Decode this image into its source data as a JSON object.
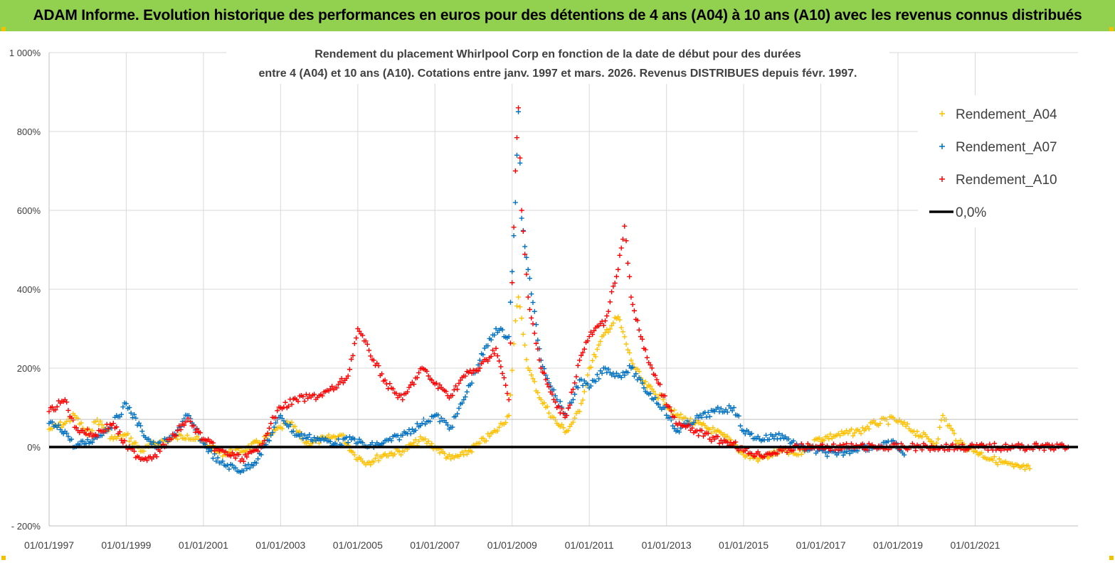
{
  "header": {
    "title": "ADAM Informe. Evolution historique des performances en euros pour des détentions de 4 ans (A04) à 10 ans (A10) avec les revenus connus distribués"
  },
  "chart_data": {
    "type": "scatter",
    "title_line1": "Rendement du placement Whirlpool Corp en fonction de la date de début pour des durées",
    "title_line2": "entre 4 (A04) et 10 ans (A10).  Cotations entre janv. 1997 et mars. 2026. Revenus DISTRIBUES depuis févr. 1997.",
    "xlim": [
      "1997-01-01",
      "2023-09-01"
    ],
    "ylim": [
      -200,
      1000
    ],
    "x_ticks": [
      "01/01/1997",
      "01/01/1999",
      "01/01/2001",
      "01/01/2003",
      "01/01/2005",
      "01/01/2007",
      "01/01/2009",
      "01/01/2011",
      "01/01/2013",
      "01/01/2015",
      "01/01/2017",
      "01/01/2019",
      "01/01/2021"
    ],
    "y_ticks": [
      "- 200%",
      "0%",
      "200%",
      "400%",
      "600%",
      "800%",
      "1 000%"
    ],
    "grid": true,
    "legend_position": "top-right",
    "series": [
      {
        "name": "Rendement_A04",
        "color": "#ffc000",
        "marker": "+",
        "points": [
          [
            "1997-01-01",
            45
          ],
          [
            "1997-06-01",
            60
          ],
          [
            "1997-09-01",
            80
          ],
          [
            "1998-01-01",
            30
          ],
          [
            "1998-04-01",
            70
          ],
          [
            "1998-09-01",
            20
          ],
          [
            "1999-01-01",
            30
          ],
          [
            "1999-06-01",
            -10
          ],
          [
            "1999-10-01",
            10
          ],
          [
            "2000-03-01",
            20
          ],
          [
            "2000-08-01",
            30
          ],
          [
            "2001-01-01",
            10
          ],
          [
            "2001-06-01",
            -15
          ],
          [
            "2002-01-01",
            -10
          ],
          [
            "2002-06-01",
            10
          ],
          [
            "2002-10-01",
            30
          ],
          [
            "2003-01-01",
            50
          ],
          [
            "2003-04-01",
            60
          ],
          [
            "2003-09-01",
            10
          ],
          [
            "2004-03-01",
            20
          ],
          [
            "2004-08-01",
            30
          ],
          [
            "2004-12-01",
            -20
          ],
          [
            "2005-04-01",
            -40
          ],
          [
            "2005-09-01",
            -20
          ],
          [
            "2006-03-01",
            -10
          ],
          [
            "2006-09-01",
            20
          ],
          [
            "2007-01-01",
            0
          ],
          [
            "2007-06-01",
            -30
          ],
          [
            "2007-10-01",
            -20
          ],
          [
            "2008-03-01",
            10
          ],
          [
            "2008-08-01",
            40
          ],
          [
            "2008-12-01",
            80
          ],
          [
            "2009-02-01",
            320
          ],
          [
            "2009-03-01",
            380
          ],
          [
            "2009-06-01",
            200
          ],
          [
            "2009-10-01",
            120
          ],
          [
            "2010-03-01",
            60
          ],
          [
            "2010-06-01",
            40
          ],
          [
            "2010-10-01",
            90
          ],
          [
            "2011-01-01",
            200
          ],
          [
            "2011-06-01",
            290
          ],
          [
            "2011-10-01",
            330
          ],
          [
            "2012-02-01",
            220
          ],
          [
            "2012-06-01",
            160
          ],
          [
            "2012-12-01",
            120
          ],
          [
            "2013-04-01",
            80
          ],
          [
            "2013-10-01",
            60
          ],
          [
            "2014-04-01",
            40
          ],
          [
            "2014-10-01",
            10
          ],
          [
            "2015-01-01",
            -20
          ],
          [
            "2015-06-01",
            -30
          ],
          [
            "2016-01-01",
            -10
          ],
          [
            "2016-06-01",
            -20
          ],
          [
            "2016-12-01",
            20
          ],
          [
            "2017-06-01",
            30
          ],
          [
            "2018-01-01",
            40
          ],
          [
            "2018-06-01",
            60
          ],
          [
            "2018-12-01",
            70
          ],
          [
            "2019-06-01",
            40
          ],
          [
            "2020-01-01",
            10
          ],
          [
            "2020-03-01",
            80
          ],
          [
            "2020-08-01",
            10
          ],
          [
            "2021-01-01",
            -10
          ],
          [
            "2021-06-01",
            -30
          ],
          [
            "2022-01-01",
            -50
          ],
          [
            "2022-06-01",
            -55
          ]
        ]
      },
      {
        "name": "Rendement_A07",
        "color": "#0070c0",
        "marker": "+",
        "points": [
          [
            "1997-01-01",
            60
          ],
          [
            "1997-06-01",
            40
          ],
          [
            "1997-09-01",
            0
          ],
          [
            "1998-03-01",
            20
          ],
          [
            "1998-09-01",
            60
          ],
          [
            "1999-01-01",
            110
          ],
          [
            "1999-06-01",
            40
          ],
          [
            "1999-10-01",
            0
          ],
          [
            "2000-03-01",
            20
          ],
          [
            "2000-08-01",
            80
          ],
          [
            "2001-01-01",
            10
          ],
          [
            "2001-06-01",
            -40
          ],
          [
            "2002-01-01",
            -60
          ],
          [
            "2002-06-01",
            -30
          ],
          [
            "2002-10-01",
            30
          ],
          [
            "2003-01-01",
            80
          ],
          [
            "2003-06-01",
            30
          ],
          [
            "2004-01-01",
            20
          ],
          [
            "2004-06-01",
            10
          ],
          [
            "2004-12-01",
            20
          ],
          [
            "2005-04-01",
            0
          ],
          [
            "2005-09-01",
            10
          ],
          [
            "2006-03-01",
            30
          ],
          [
            "2006-09-01",
            60
          ],
          [
            "2007-01-01",
            80
          ],
          [
            "2007-06-01",
            50
          ],
          [
            "2007-10-01",
            120
          ],
          [
            "2008-03-01",
            220
          ],
          [
            "2008-08-01",
            300
          ],
          [
            "2008-12-01",
            280
          ],
          [
            "2009-02-01",
            620
          ],
          [
            "2009-03-01",
            850
          ],
          [
            "2009-04-01",
            580
          ],
          [
            "2009-06-01",
            450
          ],
          [
            "2009-10-01",
            220
          ],
          [
            "2010-03-01",
            120
          ],
          [
            "2010-06-01",
            80
          ],
          [
            "2010-10-01",
            170
          ],
          [
            "2011-01-01",
            150
          ],
          [
            "2011-06-01",
            200
          ],
          [
            "2011-10-01",
            180
          ],
          [
            "2012-02-01",
            200
          ],
          [
            "2012-06-01",
            150
          ],
          [
            "2012-12-01",
            100
          ],
          [
            "2013-04-01",
            40
          ],
          [
            "2013-10-01",
            70
          ],
          [
            "2014-04-01",
            90
          ],
          [
            "2014-10-01",
            100
          ],
          [
            "2015-01-01",
            40
          ],
          [
            "2015-06-01",
            20
          ],
          [
            "2016-01-01",
            30
          ],
          [
            "2016-06-01",
            0
          ],
          [
            "2016-12-01",
            -10
          ],
          [
            "2017-06-01",
            -20
          ],
          [
            "2018-01-01",
            0
          ],
          [
            "2018-06-01",
            0
          ],
          [
            "2018-12-01",
            10
          ],
          [
            "2019-03-01",
            -20
          ]
        ]
      },
      {
        "name": "Rendement_A10",
        "color": "#ff0000",
        "marker": "+",
        "points": [
          [
            "1997-01-01",
            90
          ],
          [
            "1997-06-01",
            120
          ],
          [
            "1997-09-01",
            50
          ],
          [
            "1998-03-01",
            30
          ],
          [
            "1998-09-01",
            60
          ],
          [
            "1999-01-01",
            0
          ],
          [
            "1999-06-01",
            -30
          ],
          [
            "1999-10-01",
            -20
          ],
          [
            "2000-03-01",
            20
          ],
          [
            "2000-08-01",
            70
          ],
          [
            "2001-01-01",
            20
          ],
          [
            "2001-06-01",
            -10
          ],
          [
            "2002-01-01",
            -30
          ],
          [
            "2002-06-01",
            -10
          ],
          [
            "2002-10-01",
            60
          ],
          [
            "2003-01-01",
            100
          ],
          [
            "2003-06-01",
            120
          ],
          [
            "2004-01-01",
            130
          ],
          [
            "2004-06-01",
            150
          ],
          [
            "2004-10-01",
            180
          ],
          [
            "2005-01-01",
            300
          ],
          [
            "2005-06-01",
            220
          ],
          [
            "2005-10-01",
            160
          ],
          [
            "2006-03-01",
            120
          ],
          [
            "2006-09-01",
            200
          ],
          [
            "2007-01-01",
            160
          ],
          [
            "2007-06-01",
            130
          ],
          [
            "2007-10-01",
            180
          ],
          [
            "2008-03-01",
            200
          ],
          [
            "2008-08-01",
            250
          ],
          [
            "2008-12-01",
            120
          ],
          [
            "2009-02-01",
            700
          ],
          [
            "2009-03-01",
            860
          ],
          [
            "2009-04-01",
            600
          ],
          [
            "2009-06-01",
            380
          ],
          [
            "2009-10-01",
            200
          ],
          [
            "2010-03-01",
            100
          ],
          [
            "2010-06-01",
            80
          ],
          [
            "2010-10-01",
            220
          ],
          [
            "2011-01-01",
            280
          ],
          [
            "2011-06-01",
            320
          ],
          [
            "2011-10-01",
            450
          ],
          [
            "2011-12-01",
            560
          ],
          [
            "2012-02-01",
            380
          ],
          [
            "2012-06-01",
            250
          ],
          [
            "2012-12-01",
            130
          ],
          [
            "2013-04-01",
            60
          ],
          [
            "2013-10-01",
            40
          ],
          [
            "2014-04-01",
            20
          ],
          [
            "2014-10-01",
            10
          ],
          [
            "2015-01-01",
            -10
          ],
          [
            "2015-06-01",
            -20
          ],
          [
            "2016-01-01",
            -10
          ],
          [
            "2016-06-01",
            0
          ],
          [
            "2016-12-01",
            0
          ],
          [
            "2017-06-01",
            0
          ],
          [
            "2018-01-01",
            0
          ],
          [
            "2018-06-01",
            0
          ],
          [
            "2019-01-01",
            0
          ],
          [
            "2020-01-01",
            0
          ],
          [
            "2021-01-01",
            0
          ],
          [
            "2022-01-01",
            0
          ],
          [
            "2023-06-01",
            0
          ]
        ]
      }
    ],
    "reference_line": {
      "name": "0,0%",
      "value": 0,
      "color": "#000000"
    }
  }
}
